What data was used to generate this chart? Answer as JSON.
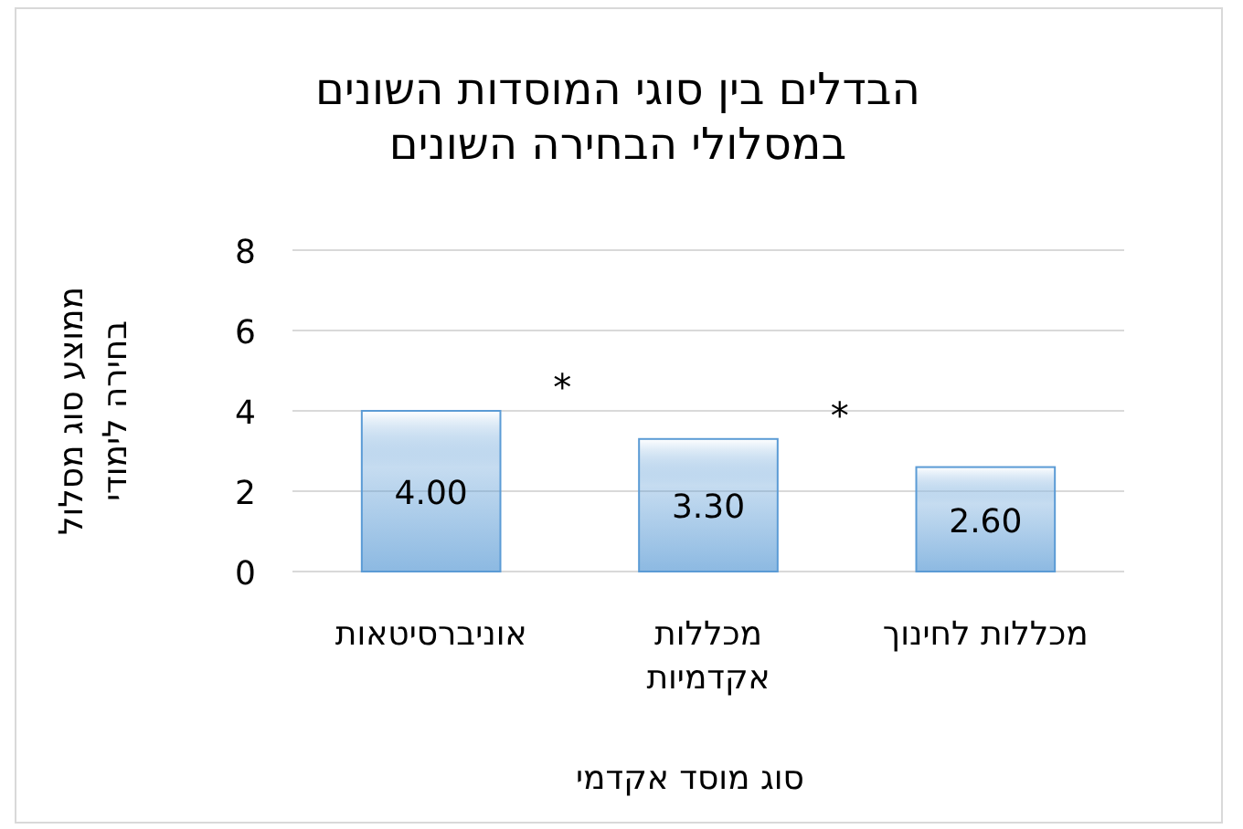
{
  "chart_data": {
    "type": "bar",
    "title": "הבדלים בין סוגי המוסדות השונים במסלולי הבחירה השונים",
    "xlabel": "סוג מוסד אקדמי",
    "ylabel": "ממוצע סוג מסלול בחירה לימודי",
    "categories": [
      "אוניברסיטאות",
      "מכללות אקדמיות",
      "מכללות לחינוך"
    ],
    "series": [
      {
        "color": "#5b9bd5",
        "values": [
          4.0,
          3.3,
          2.6
        ],
        "value_labels": [
          "4.00",
          "3.30",
          "2.60"
        ]
      }
    ],
    "ylim": [
      0,
      8
    ],
    "yticks": [
      0,
      2,
      4,
      6,
      8
    ],
    "grid": "y",
    "annotations": [
      "*",
      "*"
    ]
  }
}
